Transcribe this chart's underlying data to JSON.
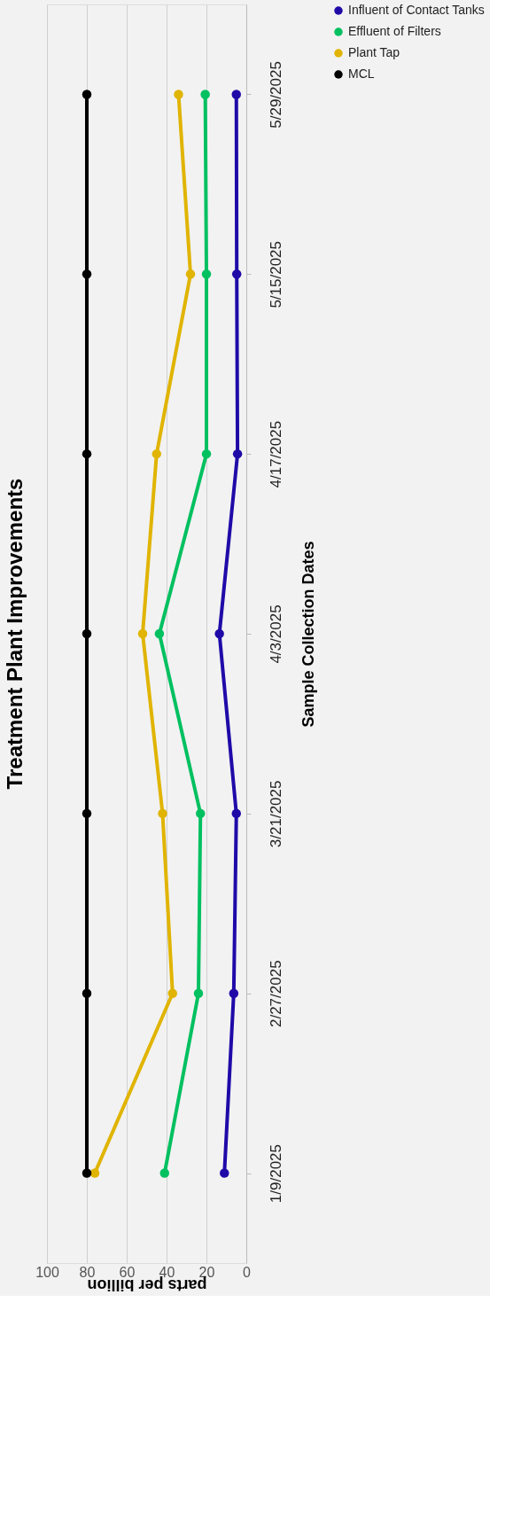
{
  "chart_data": {
    "type": "line",
    "orientation": "horizontal",
    "title": "Treatment Plant Improvements",
    "ylabel": "Sample Collection Dates",
    "xlabel": "parts per billion",
    "categories": [
      "5/29/2025",
      "5/15/2025",
      "4/17/2025",
      "4/3/2025",
      "3/21/2025",
      "2/27/2025",
      "1/9/2025"
    ],
    "series": [
      {
        "name": "Influent of Contact Tanks",
        "color": "#1f0aa8",
        "values": [
          5,
          4.8,
          4.4,
          13.5,
          5,
          6.3,
          11
        ]
      },
      {
        "name": "Effluent of Filters",
        "color": "#00c060",
        "values": [
          20.6,
          20,
          20,
          43.6,
          23,
          24,
          41
        ]
      },
      {
        "name": "Plant Tap",
        "color": "#e0b400",
        "values": [
          34,
          28,
          45,
          52,
          42,
          37,
          76
        ]
      },
      {
        "name": "MCL",
        "color": "#000000",
        "values": [
          80,
          80,
          80,
          80,
          80,
          80,
          80
        ]
      }
    ],
    "xlim": [
      100,
      0
    ],
    "xticks": [
      0,
      20,
      40,
      60,
      80,
      100
    ],
    "grid": "x",
    "legend": "right",
    "marker": "circle",
    "line_style": "solid"
  }
}
